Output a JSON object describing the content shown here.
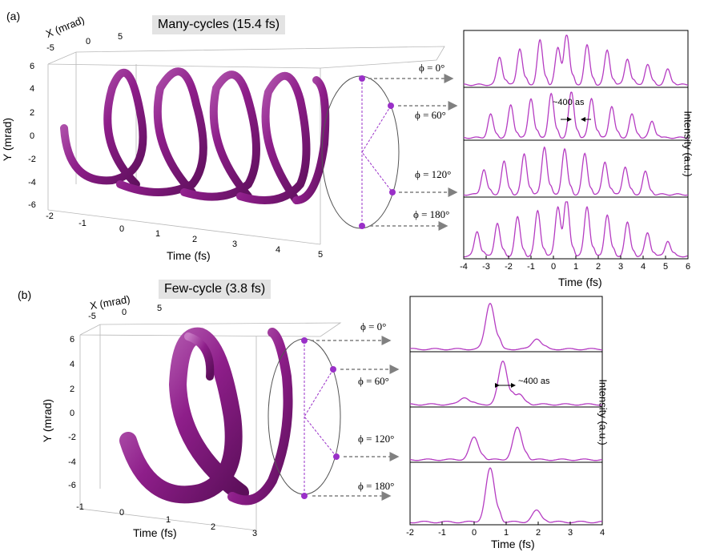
{
  "panels": [
    {
      "label": "(a)",
      "title": "Many-cycles (15.4 fs)",
      "x_axis_label": "X (mrad)",
      "x_ticks": [
        "-5",
        "0",
        "5"
      ],
      "y_axis_label": "Y (mrad)",
      "y_ticks": [
        "6",
        "4",
        "2",
        "0",
        "-2",
        "-4",
        "-6"
      ],
      "t_axis_label": "Time (fs)",
      "t_ticks": [
        "-2",
        "-1",
        "0",
        "1",
        "2",
        "3",
        "4",
        "5"
      ],
      "phi_labels": [
        "ϕ = 0°",
        "ϕ = 60°",
        "ϕ = 120°",
        "ϕ = 180°"
      ],
      "annotation": "~400 as",
      "intensity_label": "Intensity (a.u.)",
      "pulse_time_label": "Time (fs)",
      "pulse_ticks": [
        "-4",
        "-3",
        "-2",
        "-1",
        "0",
        "1",
        "2",
        "3",
        "4",
        "5",
        "6"
      ]
    },
    {
      "label": "(b)",
      "title": "Few-cycle (3.8 fs)",
      "x_axis_label": "X (mrad)",
      "x_ticks": [
        "-5",
        "0",
        "5"
      ],
      "y_axis_label": "Y (mrad)",
      "y_ticks": [
        "6",
        "4",
        "2",
        "0",
        "-2",
        "-4",
        "-6"
      ],
      "t_axis_label": "Time (fs)",
      "t_ticks": [
        "-1",
        "0",
        "1",
        "2",
        "3"
      ],
      "phi_labels": [
        "ϕ = 0°",
        "ϕ = 60°",
        "ϕ = 120°",
        "ϕ = 180°"
      ],
      "annotation": "~400 as",
      "intensity_label": "Intensity (a.u.)",
      "pulse_time_label": "Time (fs)",
      "pulse_ticks": [
        "-2",
        "-1",
        "0",
        "1",
        "2",
        "3",
        "4"
      ]
    }
  ],
  "chart_data": [
    {
      "type": "line",
      "title": "Many-cycles (15.4 fs)",
      "xlabel": "Time (fs)",
      "ylabel": "Intensity (a.u.)",
      "xlim": [
        -4,
        6
      ],
      "ylim": [
        0,
        1
      ],
      "series": [
        {
          "name": "ϕ = 0°",
          "peaks": [
            [
              -2.4,
              0.55
            ],
            [
              -1.5,
              0.72
            ],
            [
              -0.6,
              0.88
            ],
            [
              0.2,
              0.72
            ],
            [
              0.6,
              0.98
            ],
            [
              1.5,
              0.78
            ],
            [
              2.4,
              0.68
            ],
            [
              3.3,
              0.52
            ],
            [
              4.2,
              0.4
            ],
            [
              5.1,
              0.3
            ]
          ]
        },
        {
          "name": "ϕ = 60°",
          "peaks": [
            [
              -2.8,
              0.5
            ],
            [
              -1.9,
              0.7
            ],
            [
              -1.0,
              0.85
            ],
            [
              -0.1,
              0.95
            ],
            [
              0.8,
              0.98
            ],
            [
              1.7,
              0.85
            ],
            [
              2.6,
              0.68
            ],
            [
              3.5,
              0.5
            ],
            [
              4.4,
              0.35
            ]
          ]
        },
        {
          "name": "ϕ = 120°",
          "peaks": [
            [
              -3.1,
              0.5
            ],
            [
              -2.2,
              0.65
            ],
            [
              -1.3,
              0.8
            ],
            [
              -0.4,
              0.95
            ],
            [
              0.5,
              0.9
            ],
            [
              1.4,
              0.8
            ],
            [
              2.3,
              0.65
            ],
            [
              3.2,
              0.55
            ],
            [
              4.1,
              0.45
            ]
          ]
        },
        {
          "name": "ϕ = 180°",
          "peaks": [
            [
              -3.4,
              0.45
            ],
            [
              -2.5,
              0.6
            ],
            [
              -1.6,
              0.7
            ],
            [
              -0.7,
              0.82
            ],
            [
              0.2,
              0.9
            ],
            [
              0.6,
              0.98
            ],
            [
              1.5,
              0.9
            ],
            [
              2.4,
              0.75
            ],
            [
              3.3,
              0.6
            ],
            [
              4.2,
              0.42
            ],
            [
              5.1,
              0.28
            ]
          ]
        }
      ]
    },
    {
      "type": "line",
      "title": "Few-cycle (3.8 fs)",
      "xlabel": "Time (fs)",
      "ylabel": "Intensity (a.u.)",
      "xlim": [
        -2,
        4
      ],
      "ylim": [
        0,
        1
      ],
      "series": [
        {
          "name": "ϕ = 0°",
          "peaks": [
            [
              0.5,
              0.95
            ],
            [
              1.95,
              0.22
            ]
          ]
        },
        {
          "name": "ϕ = 60°",
          "peaks": [
            [
              -0.3,
              0.15
            ],
            [
              0.9,
              0.88
            ],
            [
              1.4,
              0.2
            ]
          ]
        },
        {
          "name": "ϕ = 120°",
          "peaks": [
            [
              0.0,
              0.45
            ],
            [
              1.35,
              0.65
            ]
          ]
        },
        {
          "name": "ϕ = 180°",
          "peaks": [
            [
              0.5,
              0.95
            ],
            [
              1.95,
              0.2
            ]
          ]
        }
      ]
    }
  ],
  "colors": {
    "trace": "#b53cc2",
    "helix": "#8e1e8a",
    "dot": "#9a30c8",
    "arrow": "#808080"
  }
}
